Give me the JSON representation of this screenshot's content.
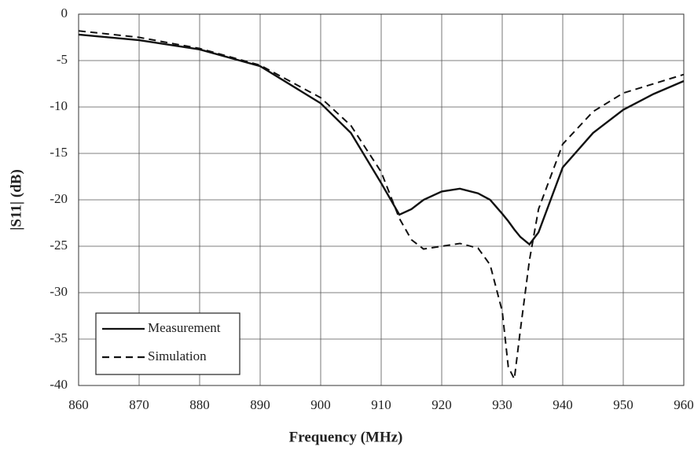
{
  "chart_data": {
    "type": "line",
    "xlabel": "Frequency (MHz)",
    "ylabel": "|S11| (dB)",
    "x": [
      860,
      870,
      880,
      890,
      900,
      905,
      910,
      913,
      915,
      917,
      920,
      923,
      926,
      928,
      930,
      931,
      932,
      933,
      934.5,
      936,
      940,
      945,
      950,
      955,
      960
    ],
    "series": [
      {
        "name": "Measurement",
        "color": "#111111",
        "dash": "solid",
        "values": [
          -2.2,
          -2.8,
          -3.8,
          -5.6,
          -9.6,
          -12.8,
          -18.2,
          -21.6,
          -21.0,
          -20.0,
          -19.1,
          -18.8,
          -19.3,
          -20.0,
          -21.5,
          -22.3,
          -23.2,
          -24.0,
          -24.8,
          -23.5,
          -16.5,
          -12.8,
          -10.3,
          -8.6,
          -7.2
        ]
      },
      {
        "name": "Simulation",
        "color": "#111111",
        "dash": "dashed",
        "values": [
          -1.8,
          -2.5,
          -3.7,
          -5.5,
          -9.0,
          -12.0,
          -17.0,
          -22.0,
          -24.3,
          -25.3,
          -25.0,
          -24.7,
          -25.2,
          -27.0,
          -32.0,
          -38.0,
          -39.3,
          -34.0,
          -26.5,
          -21.0,
          -14.0,
          -10.5,
          -8.5,
          -7.5,
          -6.5
        ]
      }
    ],
    "xlim": [
      860,
      960
    ],
    "ylim": [
      -40,
      0
    ],
    "xticks": [
      860,
      870,
      880,
      890,
      900,
      910,
      920,
      930,
      940,
      950,
      960
    ],
    "yticks": [
      0,
      -5,
      -10,
      -15,
      -20,
      -25,
      -30,
      -35,
      -40
    ],
    "grid": true,
    "legend": "lower left"
  }
}
